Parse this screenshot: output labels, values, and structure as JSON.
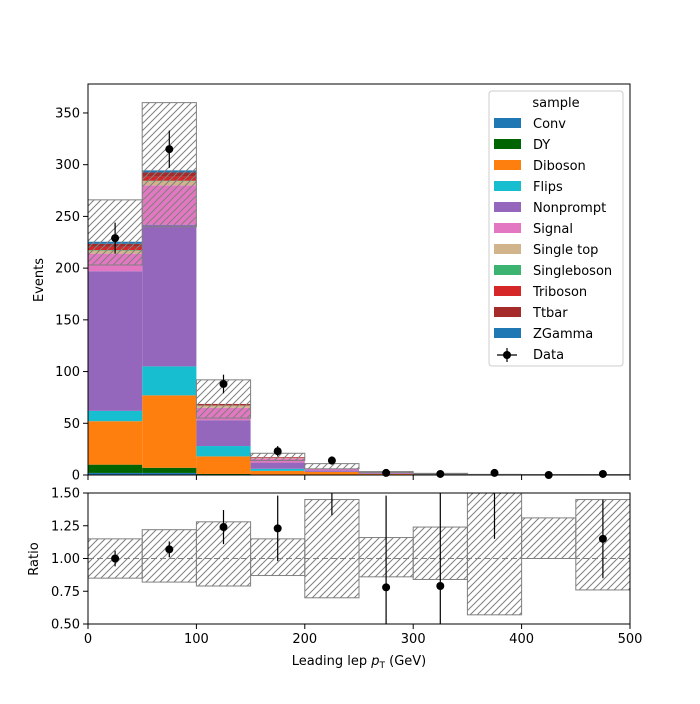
{
  "chart_data": [
    {
      "type": "bar",
      "stacked": true,
      "xlabel_prefix": "Leading lep ",
      "xlabel_var": "p",
      "xlabel_sub": "T",
      "xlabel_suffix": " (GeV)",
      "ylabel": "Events",
      "xlim": [
        0,
        500
      ],
      "ylim": [
        0,
        378
      ],
      "xticks": [
        0,
        100,
        200,
        300,
        400,
        500
      ],
      "yticks": [
        0,
        50,
        100,
        150,
        200,
        250,
        300,
        350
      ],
      "bin_edges": [
        0,
        50,
        100,
        150,
        200,
        250,
        300,
        350,
        400,
        450,
        500
      ],
      "grid": false,
      "legend": {
        "title": "sample",
        "placement": "top-right"
      },
      "series": [
        {
          "name": "Conv",
          "color": "#1f77b4",
          "values": [
            2,
            2,
            0,
            0,
            0,
            0,
            0,
            0,
            0,
            0
          ]
        },
        {
          "name": "DY",
          "color": "#006400",
          "values": [
            8,
            5,
            1,
            0,
            0,
            0,
            0,
            0,
            0,
            0
          ]
        },
        {
          "name": "Diboson",
          "color": "#ff7f0e",
          "values": [
            42,
            70,
            17,
            4,
            3,
            1,
            0.5,
            0.3,
            0.2,
            0.2
          ]
        },
        {
          "name": "Flips",
          "color": "#17becf",
          "values": [
            10,
            28,
            10,
            2,
            0,
            0,
            0,
            0,
            0,
            0
          ]
        },
        {
          "name": "Nonprompt",
          "color": "#9467bd",
          "values": [
            135,
            137,
            25,
            6,
            1.5,
            0.5,
            0.2,
            0,
            0,
            0
          ]
        },
        {
          "name": "Signal",
          "color": "#e377c2",
          "values": [
            17,
            38,
            12,
            4,
            1.5,
            0.8,
            0.3,
            0.1,
            0.1,
            0.1
          ]
        },
        {
          "name": "Single top",
          "color": "#d2b48c",
          "values": [
            3,
            4,
            2,
            0.5,
            0,
            0,
            0,
            0,
            0,
            0
          ]
        },
        {
          "name": "Singleboson",
          "color": "#3cb371",
          "values": [
            0.5,
            0.5,
            0.2,
            0,
            0,
            0,
            0,
            0,
            0,
            0
          ]
        },
        {
          "name": "Triboson",
          "color": "#d62728",
          "values": [
            3,
            4,
            0.5,
            0.3,
            0.2,
            0.1,
            0,
            0,
            0,
            0
          ]
        },
        {
          "name": "Ttbar",
          "color": "#a52a2a",
          "values": [
            3,
            4,
            1,
            0.5,
            0,
            0,
            0,
            0,
            0,
            0
          ]
        },
        {
          "name": "ZGamma",
          "color": "#1f77b4",
          "values": [
            2,
            2,
            0,
            0,
            0,
            0,
            0,
            0,
            0,
            0
          ]
        }
      ],
      "uncertainty": {
        "down": [
          203,
          240,
          55,
          14,
          6,
          2.3,
          0.8,
          0.2,
          0.25,
          0.2
        ],
        "up": [
          266,
          360,
          92,
          21,
          11,
          3.3,
          1.6,
          0.6,
          0.45,
          0.45
        ]
      },
      "data": {
        "name": "Data",
        "x": [
          25,
          75,
          125,
          175,
          225,
          275,
          325,
          375,
          425,
          475
        ],
        "y": [
          229,
          315,
          88,
          23,
          14,
          2,
          1,
          2,
          0,
          1
        ],
        "err": [
          15,
          18,
          9,
          5,
          4,
          1.4,
          1,
          1.4,
          0,
          1
        ]
      }
    },
    {
      "type": "scatter",
      "ylabel": "Ratio",
      "xlim": [
        0,
        500
      ],
      "ylim": [
        0.5,
        1.5
      ],
      "xticks": [
        0,
        100,
        200,
        300,
        400,
        500
      ],
      "yticks": [
        "0.50",
        "0.75",
        "1.00",
        "1.25",
        "1.50"
      ],
      "reference_line": 1.0,
      "bin_edges": [
        0,
        50,
        100,
        150,
        200,
        250,
        300,
        350,
        400,
        450,
        500
      ],
      "band": {
        "down": [
          0.85,
          0.82,
          0.79,
          0.87,
          0.7,
          0.86,
          0.84,
          0.57,
          1.0,
          0.76
        ],
        "up": [
          1.15,
          1.22,
          1.28,
          1.15,
          1.45,
          1.16,
          1.24,
          1.5,
          1.31,
          1.45
        ]
      },
      "points": {
        "x": [
          25,
          75,
          125,
          175,
          225,
          275,
          325,
          375,
          425,
          475
        ],
        "y": [
          1.0,
          1.07,
          1.24,
          1.23,
          1.6,
          0.78,
          0.79,
          1.55,
          null,
          1.15
        ],
        "err": [
          0.06,
          0.06,
          0.13,
          0.25,
          0.27,
          0.7,
          0.8,
          0.4,
          null,
          0.3
        ]
      }
    }
  ]
}
